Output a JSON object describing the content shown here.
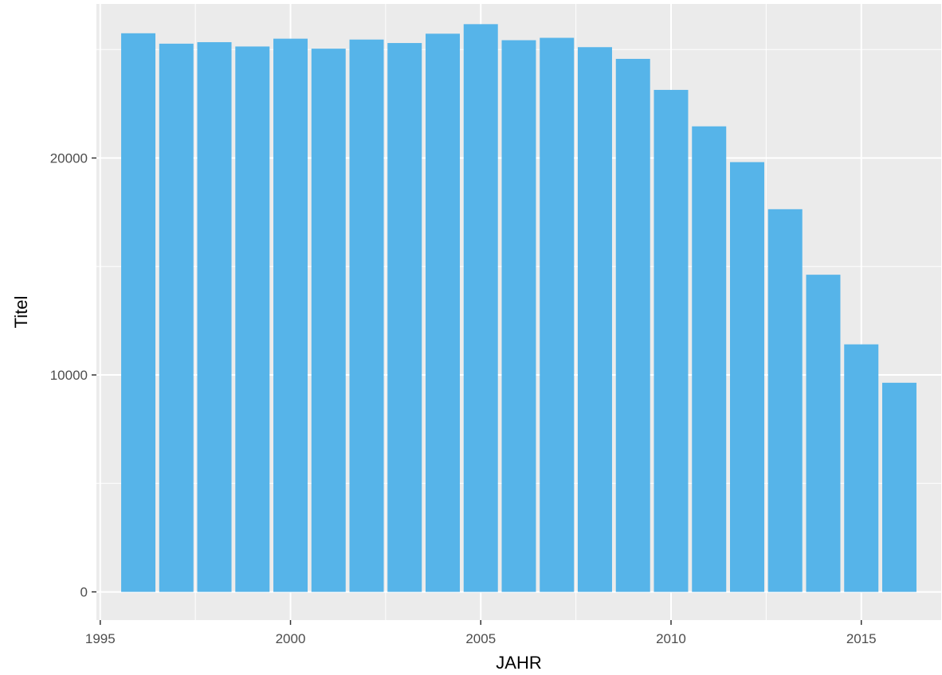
{
  "chart_data": {
    "type": "bar",
    "xlabel": "JAHR",
    "ylabel": "Titel",
    "x": [
      1996,
      1997,
      1998,
      1999,
      2000,
      2001,
      2002,
      2003,
      2004,
      2005,
      2006,
      2007,
      2008,
      2009,
      2010,
      2011,
      2012,
      2013,
      2014,
      2015,
      2016
    ],
    "values": [
      25750,
      25270,
      25340,
      25140,
      25500,
      25040,
      25460,
      25300,
      25730,
      26170,
      25430,
      25540,
      25110,
      24570,
      23140,
      21460,
      19810,
      17640,
      14620,
      11410,
      9640
    ],
    "xlim": [
      1994.9,
      2017.1
    ],
    "ylim": [
      -1300,
      27100
    ],
    "x_ticks": [
      1995,
      2000,
      2005,
      2010,
      2015
    ],
    "y_ticks": [
      0,
      10000,
      20000
    ],
    "grid": true,
    "legend": "none",
    "colors": {
      "bar": "#56B4E9",
      "panel": "#EBEBEB",
      "grid": "#FFFFFF"
    }
  }
}
